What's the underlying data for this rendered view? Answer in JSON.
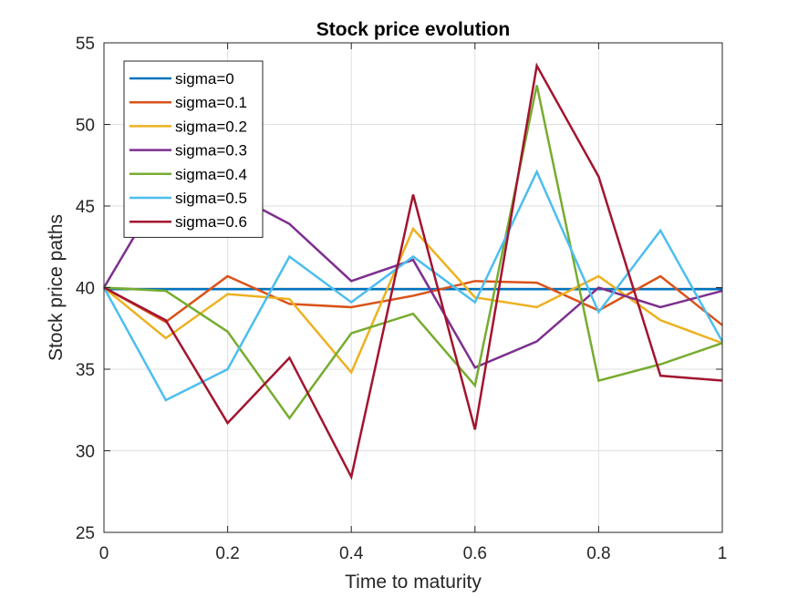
{
  "chart_data": {
    "type": "line",
    "title": "Stock price evolution",
    "xlabel": "Time to maturity",
    "ylabel": "Stock price paths",
    "xlim": [
      0,
      1
    ],
    "ylim": [
      25,
      55
    ],
    "xticks": [
      "0",
      "0.2",
      "0.4",
      "0.6",
      "0.8",
      "1"
    ],
    "xtick_values": [
      0,
      0.2,
      0.4,
      0.6,
      0.8,
      1
    ],
    "yticks": [
      "25",
      "30",
      "35",
      "40",
      "45",
      "50",
      "55"
    ],
    "ytick_values": [
      25,
      30,
      35,
      40,
      45,
      50,
      55
    ],
    "grid": true,
    "legend_position": "top-left",
    "x": [
      0,
      0.1,
      0.2,
      0.3,
      0.4,
      0.5,
      0.6,
      0.7,
      0.8,
      0.9,
      1.0
    ],
    "series": [
      {
        "name": "sigma=0",
        "color": "#0072BD",
        "values": [
          39.9,
          39.9,
          39.9,
          39.9,
          39.9,
          39.9,
          39.9,
          39.9,
          39.9,
          39.9,
          39.9
        ]
      },
      {
        "name": "sigma=0.1",
        "color": "#D95319",
        "values": [
          40.0,
          37.9,
          40.7,
          39.0,
          38.8,
          39.5,
          40.4,
          40.3,
          38.6,
          40.7,
          37.7
        ]
      },
      {
        "name": "sigma=0.2",
        "color": "#EDB120",
        "values": [
          40.0,
          36.9,
          39.6,
          39.3,
          34.8,
          43.6,
          39.4,
          38.8,
          40.7,
          38.0,
          36.6
        ]
      },
      {
        "name": "sigma=0.3",
        "color": "#7E2F8E",
        "values": [
          40.0,
          46.4,
          45.9,
          43.9,
          40.4,
          41.7,
          35.1,
          36.7,
          40.0,
          38.8,
          39.8
        ]
      },
      {
        "name": "sigma=0.4",
        "color": "#77AC30",
        "values": [
          40.0,
          39.8,
          37.3,
          32.0,
          37.2,
          38.4,
          34.0,
          52.4,
          34.3,
          35.3,
          36.6
        ]
      },
      {
        "name": "sigma=0.5",
        "color": "#4DBEEE",
        "values": [
          40.0,
          33.1,
          35.0,
          41.9,
          39.1,
          41.9,
          39.1,
          47.1,
          38.5,
          43.5,
          36.7
        ]
      },
      {
        "name": "sigma=0.6",
        "color": "#A2142F",
        "values": [
          40.0,
          38.0,
          31.7,
          35.7,
          28.4,
          45.7,
          31.3,
          53.6,
          46.8,
          34.6,
          34.3
        ]
      }
    ]
  }
}
